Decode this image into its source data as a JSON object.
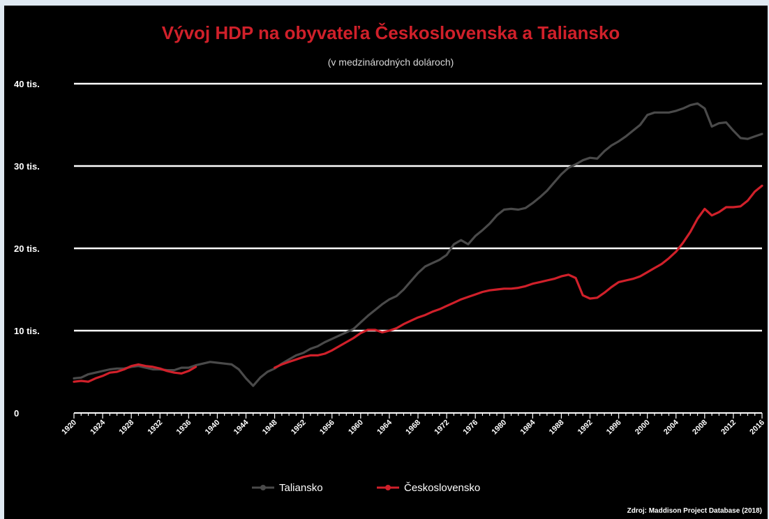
{
  "chart_data": {
    "type": "line",
    "title": "Vývoj HDP na obyvateľa Československa a Taliansko",
    "subtitle": "(v medzinárodných dolároch)",
    "source": "Zdroj: Maddison Project Database (2018)",
    "ylim": [
      0,
      40000
    ],
    "yticks": [
      {
        "value": 0,
        "label": "0"
      },
      {
        "value": 10000,
        "label": "10 tis."
      },
      {
        "value": 20000,
        "label": "20 tis."
      },
      {
        "value": 30000,
        "label": "30 tis."
      },
      {
        "value": 40000,
        "label": "40 tis."
      }
    ],
    "xlim": [
      1920,
      2016
    ],
    "xticks": [
      "1920",
      "1924",
      "1928",
      "1932",
      "1936",
      "1940",
      "1944",
      "1948",
      "1952",
      "1956",
      "1960",
      "1964",
      "1968",
      "1972",
      "1976",
      "1980",
      "1984",
      "1988",
      "1992",
      "1996",
      "2000",
      "2004",
      "2008",
      "2012",
      "2016"
    ],
    "grid": true,
    "legend_position": "bottom",
    "series": [
      {
        "name": "Taliansko",
        "color": "#4a4a4a",
        "points": [
          [
            1920,
            4200
          ],
          [
            1921,
            4300
          ],
          [
            1922,
            4700
          ],
          [
            1923,
            4900
          ],
          [
            1924,
            5100
          ],
          [
            1925,
            5300
          ],
          [
            1926,
            5400
          ],
          [
            1927,
            5400
          ],
          [
            1928,
            5600
          ],
          [
            1929,
            5700
          ],
          [
            1930,
            5500
          ],
          [
            1931,
            5300
          ],
          [
            1932,
            5300
          ],
          [
            1933,
            5200
          ],
          [
            1934,
            5200
          ],
          [
            1935,
            5500
          ],
          [
            1936,
            5500
          ],
          [
            1937,
            5800
          ],
          [
            1938,
            6000
          ],
          [
            1939,
            6200
          ],
          [
            1940,
            6100
          ],
          [
            1941,
            6000
          ],
          [
            1942,
            5900
          ],
          [
            1943,
            5300
          ],
          [
            1944,
            4200
          ],
          [
            1945,
            3300
          ],
          [
            1946,
            4300
          ],
          [
            1947,
            5000
          ],
          [
            1948,
            5400
          ],
          [
            1949,
            6000
          ],
          [
            1950,
            6500
          ],
          [
            1951,
            7000
          ],
          [
            1952,
            7300
          ],
          [
            1953,
            7800
          ],
          [
            1954,
            8100
          ],
          [
            1955,
            8600
          ],
          [
            1956,
            9000
          ],
          [
            1957,
            9400
          ],
          [
            1958,
            9800
          ],
          [
            1959,
            10200
          ],
          [
            1960,
            11000
          ],
          [
            1961,
            11800
          ],
          [
            1962,
            12500
          ],
          [
            1963,
            13200
          ],
          [
            1964,
            13800
          ],
          [
            1965,
            14200
          ],
          [
            1966,
            15000
          ],
          [
            1967,
            16000
          ],
          [
            1968,
            17000
          ],
          [
            1969,
            17800
          ],
          [
            1970,
            18200
          ],
          [
            1971,
            18600
          ],
          [
            1972,
            19200
          ],
          [
            1973,
            20500
          ],
          [
            1974,
            21000
          ],
          [
            1975,
            20500
          ],
          [
            1976,
            21500
          ],
          [
            1977,
            22200
          ],
          [
            1978,
            23000
          ],
          [
            1979,
            24000
          ],
          [
            1980,
            24700
          ],
          [
            1981,
            24800
          ],
          [
            1982,
            24700
          ],
          [
            1983,
            24900
          ],
          [
            1984,
            25500
          ],
          [
            1985,
            26200
          ],
          [
            1986,
            27000
          ],
          [
            1987,
            28000
          ],
          [
            1988,
            29000
          ],
          [
            1989,
            29800
          ],
          [
            1990,
            30200
          ],
          [
            1991,
            30700
          ],
          [
            1992,
            31000
          ],
          [
            1993,
            30900
          ],
          [
            1994,
            31800
          ],
          [
            1995,
            32500
          ],
          [
            1996,
            33000
          ],
          [
            1997,
            33600
          ],
          [
            1998,
            34300
          ],
          [
            1999,
            35000
          ],
          [
            2000,
            36200
          ],
          [
            2001,
            36500
          ],
          [
            2002,
            36500
          ],
          [
            2003,
            36500
          ],
          [
            2004,
            36700
          ],
          [
            2005,
            37000
          ],
          [
            2006,
            37400
          ],
          [
            2007,
            37600
          ],
          [
            2008,
            37000
          ],
          [
            2009,
            34800
          ],
          [
            2010,
            35200
          ],
          [
            2011,
            35300
          ],
          [
            2012,
            34300
          ],
          [
            2013,
            33400
          ],
          [
            2014,
            33300
          ],
          [
            2015,
            33600
          ],
          [
            2016,
            33900
          ]
        ]
      },
      {
        "name": "Československo",
        "color": "#d0202a",
        "points": [
          [
            1920,
            3800
          ],
          [
            1921,
            3900
          ],
          [
            1922,
            3800
          ],
          [
            1923,
            4200
          ],
          [
            1924,
            4500
          ],
          [
            1925,
            4900
          ],
          [
            1926,
            5000
          ],
          [
            1927,
            5300
          ],
          [
            1928,
            5700
          ],
          [
            1929,
            5900
          ],
          [
            1930,
            5700
          ],
          [
            1931,
            5600
          ],
          [
            1932,
            5400
          ],
          [
            1933,
            5100
          ],
          [
            1934,
            4900
          ],
          [
            1935,
            4800
          ],
          [
            1936,
            5100
          ],
          [
            1937,
            5600
          ],
          [
            1948,
            5500
          ],
          [
            1949,
            5900
          ],
          [
            1950,
            6200
          ],
          [
            1951,
            6500
          ],
          [
            1952,
            6800
          ],
          [
            1953,
            7000
          ],
          [
            1954,
            7000
          ],
          [
            1955,
            7200
          ],
          [
            1956,
            7600
          ],
          [
            1957,
            8100
          ],
          [
            1958,
            8600
          ],
          [
            1959,
            9100
          ],
          [
            1960,
            9700
          ],
          [
            1961,
            10100
          ],
          [
            1962,
            10100
          ],
          [
            1963,
            9800
          ],
          [
            1964,
            10000
          ],
          [
            1965,
            10300
          ],
          [
            1966,
            10800
          ],
          [
            1967,
            11200
          ],
          [
            1968,
            11600
          ],
          [
            1969,
            11900
          ],
          [
            1970,
            12300
          ],
          [
            1971,
            12600
          ],
          [
            1972,
            13000
          ],
          [
            1973,
            13400
          ],
          [
            1974,
            13800
          ],
          [
            1975,
            14100
          ],
          [
            1976,
            14400
          ],
          [
            1977,
            14700
          ],
          [
            1978,
            14900
          ],
          [
            1979,
            15000
          ],
          [
            1980,
            15100
          ],
          [
            1981,
            15100
          ],
          [
            1982,
            15200
          ],
          [
            1983,
            15400
          ],
          [
            1984,
            15700
          ],
          [
            1985,
            15900
          ],
          [
            1986,
            16100
          ],
          [
            1987,
            16300
          ],
          [
            1988,
            16600
          ],
          [
            1989,
            16800
          ],
          [
            1990,
            16400
          ],
          [
            1991,
            14300
          ],
          [
            1992,
            13900
          ],
          [
            1993,
            14000
          ],
          [
            1994,
            14600
          ],
          [
            1995,
            15300
          ],
          [
            1996,
            15900
          ],
          [
            1997,
            16100
          ],
          [
            1998,
            16300
          ],
          [
            1999,
            16600
          ],
          [
            2000,
            17100
          ],
          [
            2001,
            17600
          ],
          [
            2002,
            18100
          ],
          [
            2003,
            18800
          ],
          [
            2004,
            19600
          ],
          [
            2005,
            20700
          ],
          [
            2006,
            22000
          ],
          [
            2007,
            23600
          ],
          [
            2008,
            24800
          ],
          [
            2009,
            24000
          ],
          [
            2010,
            24400
          ],
          [
            2011,
            25000
          ],
          [
            2012,
            25000
          ],
          [
            2013,
            25100
          ],
          [
            2014,
            25800
          ],
          [
            2015,
            26900
          ],
          [
            2016,
            27600
          ]
        ]
      }
    ]
  }
}
